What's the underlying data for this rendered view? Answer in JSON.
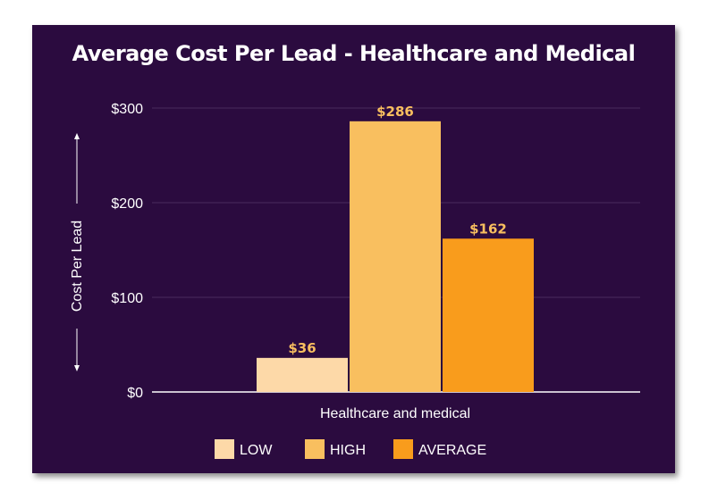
{
  "chart_data": {
    "type": "bar",
    "title": "Average Cost Per Lead - Healthcare and Medical",
    "xlabel": "",
    "ylabel": "Cost Per Lead",
    "categories": [
      "Healthcare and medical"
    ],
    "series": [
      {
        "name": "LOW",
        "values": [
          36
        ],
        "label": "$36",
        "color": "#fdd9a8"
      },
      {
        "name": "HIGH",
        "values": [
          286
        ],
        "label": "$286",
        "color": "#f9bf5f"
      },
      {
        "name": "AVERAGE",
        "values": [
          162
        ],
        "label": "$162",
        "color": "#f99c1c"
      }
    ],
    "ylim": [
      0,
      300
    ],
    "yticks": [
      {
        "value": 0,
        "label": "$0"
      },
      {
        "value": 100,
        "label": "$100"
      },
      {
        "value": 200,
        "label": "$200"
      },
      {
        "value": 300,
        "label": "$300"
      }
    ],
    "grid": true,
    "legend": "bottom-center",
    "label_color": "#f9bf5f",
    "background": "#2b0b3f"
  }
}
